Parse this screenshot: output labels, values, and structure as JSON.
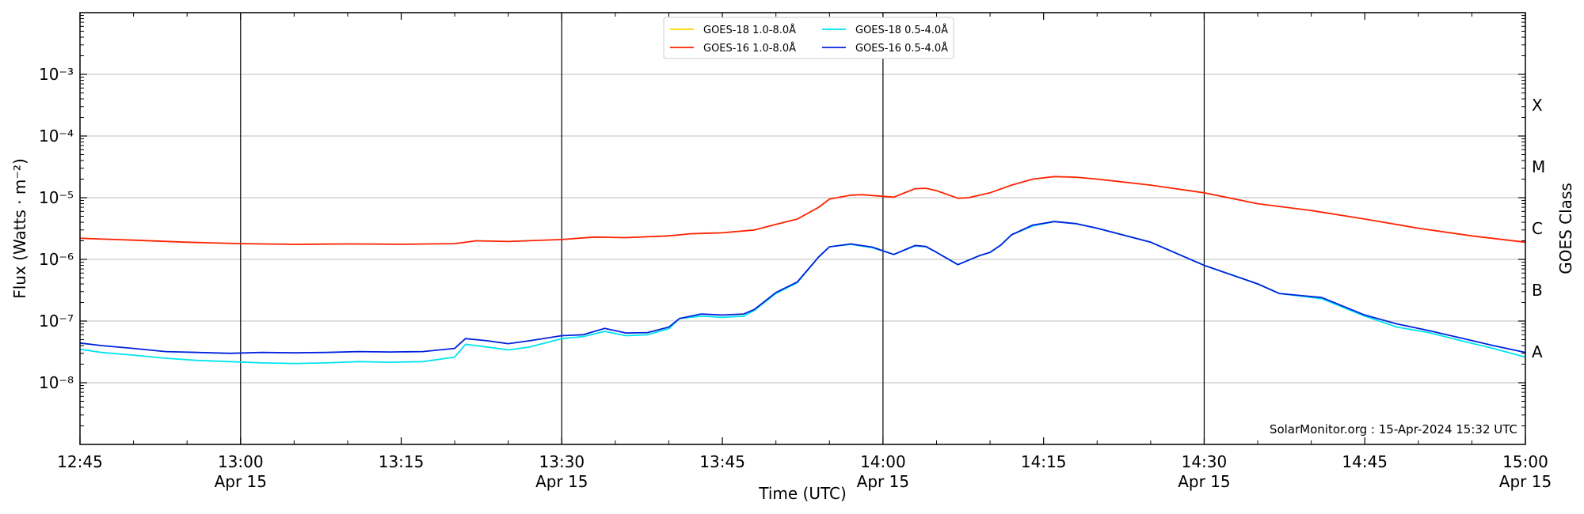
{
  "chart_data": {
    "type": "line",
    "xlabel": "Time (UTC)",
    "ylabel": "Flux (Watts · m⁻²)",
    "y2label": "GOES Class",
    "yscale": "log",
    "ylim": [
      1e-09,
      0.01
    ],
    "xlim": [
      "12:45",
      "15:00"
    ],
    "grid": true,
    "legend_position": "top-center",
    "x_ticks": [
      {
        "time": "12:45",
        "label": "12:45",
        "date": ""
      },
      {
        "time": "13:00",
        "label": "13:00",
        "date": "Apr 15"
      },
      {
        "time": "13:15",
        "label": "13:15",
        "date": ""
      },
      {
        "time": "13:30",
        "label": "13:30",
        "date": "Apr 15"
      },
      {
        "time": "13:45",
        "label": "13:45",
        "date": ""
      },
      {
        "time": "14:00",
        "label": "14:00",
        "date": "Apr 15"
      },
      {
        "time": "14:15",
        "label": "14:15",
        "date": ""
      },
      {
        "time": "14:30",
        "label": "14:30",
        "date": "Apr 15"
      },
      {
        "time": "14:45",
        "label": "14:45",
        "date": ""
      },
      {
        "time": "15:00",
        "label": "15:00",
        "date": "Apr 15"
      }
    ],
    "y_ticks": [
      {
        "exp": -8,
        "label": "10⁻⁸"
      },
      {
        "exp": -7,
        "label": "10⁻⁷"
      },
      {
        "exp": -6,
        "label": "10⁻⁶"
      },
      {
        "exp": -5,
        "label": "10⁻⁵"
      },
      {
        "exp": -4,
        "label": "10⁻⁴"
      },
      {
        "exp": -3,
        "label": "10⁻³"
      }
    ],
    "class_labels": [
      {
        "label": "A",
        "exp": -7.5
      },
      {
        "label": "B",
        "exp": -6.5
      },
      {
        "label": "C",
        "exp": -5.5
      },
      {
        "label": "M",
        "exp": -4.5
      },
      {
        "label": "X",
        "exp": -3.5
      }
    ],
    "vlines": [
      "13:00",
      "13:30",
      "14:00",
      "14:30"
    ],
    "annotation": "SolarMonitor.org : 15-Apr-2024 15:32 UTC",
    "series": [
      {
        "name": "GOES-18 1.0-8.0Å",
        "color": "#ffd700",
        "points": []
      },
      {
        "name": "GOES-16 1.0-8.0Å",
        "color": "#ff2200",
        "points": [
          [
            "12:45",
            2.2e-06
          ],
          [
            "12:50",
            2.05e-06
          ],
          [
            "12:55",
            1.9e-06
          ],
          [
            "13:00",
            1.8e-06
          ],
          [
            "13:05",
            1.75e-06
          ],
          [
            "13:10",
            1.78e-06
          ],
          [
            "13:15",
            1.76e-06
          ],
          [
            "13:20",
            1.8e-06
          ],
          [
            "13:22",
            2e-06
          ],
          [
            "13:25",
            1.95e-06
          ],
          [
            "13:30",
            2.1e-06
          ],
          [
            "13:33",
            2.3e-06
          ],
          [
            "13:36",
            2.25e-06
          ],
          [
            "13:40",
            2.4e-06
          ],
          [
            "13:42",
            2.6e-06
          ],
          [
            "13:45",
            2.7e-06
          ],
          [
            "13:48",
            3e-06
          ],
          [
            "13:50",
            3.7e-06
          ],
          [
            "13:52",
            4.5e-06
          ],
          [
            "13:54",
            7e-06
          ],
          [
            "13:55",
            9.5e-06
          ],
          [
            "13:57",
            1.1e-05
          ],
          [
            "13:58",
            1.12e-05
          ],
          [
            "14:01",
            1.02e-05
          ],
          [
            "14:03",
            1.4e-05
          ],
          [
            "14:04",
            1.42e-05
          ],
          [
            "14:05",
            1.3e-05
          ],
          [
            "14:07",
            9.8e-06
          ],
          [
            "14:08",
            1e-05
          ],
          [
            "14:10",
            1.2e-05
          ],
          [
            "14:12",
            1.6e-05
          ],
          [
            "14:14",
            2e-05
          ],
          [
            "14:16",
            2.2e-05
          ],
          [
            "14:18",
            2.15e-05
          ],
          [
            "14:20",
            2e-05
          ],
          [
            "14:25",
            1.6e-05
          ],
          [
            "14:30",
            1.2e-05
          ],
          [
            "14:35",
            8e-06
          ],
          [
            "14:40",
            6.2e-06
          ],
          [
            "14:45",
            4.5e-06
          ],
          [
            "14:50",
            3.2e-06
          ],
          [
            "14:55",
            2.4e-06
          ],
          [
            "15:00",
            1.9e-06
          ]
        ]
      },
      {
        "name": "GOES-18 0.5-4.0Å",
        "color": "#00e5ee",
        "points": [
          [
            "12:45",
            3.5e-08
          ],
          [
            "12:47",
            3.1e-08
          ],
          [
            "12:50",
            2.8e-08
          ],
          [
            "12:53",
            2.5e-08
          ],
          [
            "12:56",
            2.3e-08
          ],
          [
            "12:59",
            2.2e-08
          ],
          [
            "13:02",
            2.1e-08
          ],
          [
            "13:05",
            2.05e-08
          ],
          [
            "13:08",
            2.1e-08
          ],
          [
            "13:11",
            2.2e-08
          ],
          [
            "13:14",
            2.15e-08
          ],
          [
            "13:17",
            2.2e-08
          ],
          [
            "13:20",
            2.6e-08
          ],
          [
            "13:21",
            4.2e-08
          ],
          [
            "13:23",
            3.8e-08
          ],
          [
            "13:25",
            3.4e-08
          ],
          [
            "13:27",
            3.8e-08
          ],
          [
            "13:30",
            5.2e-08
          ],
          [
            "13:32",
            5.6e-08
          ],
          [
            "13:34",
            6.8e-08
          ],
          [
            "13:36",
            5.8e-08
          ],
          [
            "13:38",
            6e-08
          ],
          [
            "13:40",
            7.5e-08
          ],
          [
            "13:41",
            1.1e-07
          ],
          [
            "13:43",
            1.2e-07
          ],
          [
            "13:45",
            1.15e-07
          ],
          [
            "13:47",
            1.2e-07
          ],
          [
            "13:48",
            1.5e-07
          ],
          [
            "13:50",
            2.8e-07
          ],
          [
            "13:52",
            4.2e-07
          ],
          [
            "13:54",
            1.1e-06
          ],
          [
            "13:55",
            1.6e-06
          ],
          [
            "13:57",
            1.75e-06
          ],
          [
            "13:59",
            1.55e-06
          ],
          [
            "14:01",
            1.2e-06
          ],
          [
            "14:03",
            1.65e-06
          ],
          [
            "14:04",
            1.6e-06
          ],
          [
            "14:05",
            1.3e-06
          ],
          [
            "14:07",
            8.2e-07
          ],
          [
            "14:09",
            1.15e-06
          ],
          [
            "14:10",
            1.3e-06
          ],
          [
            "14:11",
            1.7e-06
          ],
          [
            "14:12",
            2.5e-06
          ],
          [
            "14:14",
            3.5e-06
          ],
          [
            "14:16",
            4.1e-06
          ],
          [
            "14:18",
            3.8e-06
          ],
          [
            "14:20",
            3.2e-06
          ],
          [
            "14:25",
            1.9e-06
          ],
          [
            "14:30",
            8e-07
          ],
          [
            "14:35",
            4e-07
          ],
          [
            "14:37",
            2.8e-07
          ],
          [
            "14:41",
            2.3e-07
          ],
          [
            "14:45",
            1.2e-07
          ],
          [
            "14:48",
            8e-08
          ],
          [
            "14:51",
            6.5e-08
          ],
          [
            "14:54",
            4.8e-08
          ],
          [
            "14:57",
            3.6e-08
          ],
          [
            "15:00",
            2.6e-08
          ]
        ]
      },
      {
        "name": "GOES-16 0.5-4.0Å",
        "color": "#0022dd",
        "points": [
          [
            "12:45",
            4.4e-08
          ],
          [
            "12:47",
            4e-08
          ],
          [
            "12:50",
            3.6e-08
          ],
          [
            "12:53",
            3.2e-08
          ],
          [
            "12:56",
            3.1e-08
          ],
          [
            "12:59",
            3e-08
          ],
          [
            "13:02",
            3.1e-08
          ],
          [
            "13:05",
            3.05e-08
          ],
          [
            "13:08",
            3.1e-08
          ],
          [
            "13:11",
            3.2e-08
          ],
          [
            "13:14",
            3.15e-08
          ],
          [
            "13:17",
            3.2e-08
          ],
          [
            "13:20",
            3.6e-08
          ],
          [
            "13:21",
            5.2e-08
          ],
          [
            "13:23",
            4.8e-08
          ],
          [
            "13:25",
            4.3e-08
          ],
          [
            "13:27",
            4.8e-08
          ],
          [
            "13:30",
            5.8e-08
          ],
          [
            "13:32",
            6e-08
          ],
          [
            "13:34",
            7.6e-08
          ],
          [
            "13:36",
            6.4e-08
          ],
          [
            "13:38",
            6.5e-08
          ],
          [
            "13:40",
            8e-08
          ],
          [
            "13:41",
            1.1e-07
          ],
          [
            "13:43",
            1.3e-07
          ],
          [
            "13:45",
            1.25e-07
          ],
          [
            "13:47",
            1.3e-07
          ],
          [
            "13:48",
            1.55e-07
          ],
          [
            "13:50",
            2.9e-07
          ],
          [
            "13:52",
            4.3e-07
          ],
          [
            "13:54",
            1.1e-06
          ],
          [
            "13:55",
            1.6e-06
          ],
          [
            "13:57",
            1.78e-06
          ],
          [
            "13:59",
            1.58e-06
          ],
          [
            "14:01",
            1.2e-06
          ],
          [
            "14:03",
            1.68e-06
          ],
          [
            "14:04",
            1.62e-06
          ],
          [
            "14:05",
            1.3e-06
          ],
          [
            "14:07",
            8.2e-07
          ],
          [
            "14:09",
            1.15e-06
          ],
          [
            "14:10",
            1.3e-06
          ],
          [
            "14:11",
            1.7e-06
          ],
          [
            "14:12",
            2.5e-06
          ],
          [
            "14:14",
            3.6e-06
          ],
          [
            "14:16",
            4.1e-06
          ],
          [
            "14:18",
            3.8e-06
          ],
          [
            "14:20",
            3.2e-06
          ],
          [
            "14:25",
            1.9e-06
          ],
          [
            "14:30",
            8e-07
          ],
          [
            "14:35",
            4e-07
          ],
          [
            "14:37",
            2.8e-07
          ],
          [
            "14:41",
            2.4e-07
          ],
          [
            "14:45",
            1.25e-07
          ],
          [
            "14:48",
            9e-08
          ],
          [
            "14:51",
            7e-08
          ],
          [
            "14:54",
            5.3e-08
          ],
          [
            "14:57",
            4e-08
          ],
          [
            "15:00",
            3.1e-08
          ]
        ]
      }
    ]
  }
}
